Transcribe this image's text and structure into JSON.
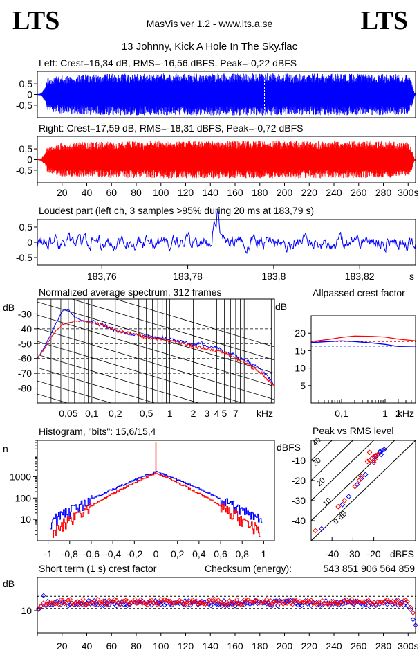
{
  "header": {
    "logo_left": "LTS",
    "logo_right": "LTS",
    "app_title": "MasVis ver 1.2 - www.lts.a.se",
    "track_title": "13 Johnny, Kick A Hole In The Sky.flac"
  },
  "colors": {
    "left": "#0000ff",
    "right": "#ff0000",
    "grid": "#000000"
  },
  "chart_data": [
    {
      "id": "left_waveform",
      "type": "area",
      "title": "Left: Crest=16,34 dB, RMS=-16,56 dBFS, Peak=-0,22 dBFS",
      "y_ticks": [
        "0,5",
        "0",
        "-0,5"
      ],
      "x_range": [
        0,
        306
      ],
      "y_range": [
        -1,
        1
      ],
      "series": [
        {
          "color": "#0000ff",
          "envelope": [
            [
              0,
              0.02
            ],
            [
              3,
              0.05
            ],
            [
              6,
              0.3
            ],
            [
              8,
              0.75
            ],
            [
              12,
              0.82
            ],
            [
              20,
              0.9
            ],
            [
              40,
              0.95
            ],
            [
              60,
              0.97
            ],
            [
              100,
              0.98
            ],
            [
              183.79,
              0.99
            ],
            [
              200,
              0.98
            ],
            [
              250,
              0.97
            ],
            [
              290,
              0.96
            ],
            [
              300,
              0.92
            ],
            [
              303,
              0.6
            ],
            [
              305,
              0.1
            ],
            [
              306,
              0.02
            ]
          ]
        }
      ]
    },
    {
      "id": "right_waveform",
      "type": "area",
      "title": "Right: Crest=17,59 dB, RMS=-18,31 dBFS, Peak=-0,72 dBFS",
      "y_ticks": [
        "0,5",
        "0",
        "-0,5"
      ],
      "x_ticks": [
        "20",
        "40",
        "60",
        "80",
        "100",
        "120",
        "140",
        "160",
        "180",
        "200",
        "220",
        "240",
        "260",
        "280",
        "300s"
      ],
      "x_range": [
        0,
        306
      ],
      "y_range": [
        -1,
        1
      ],
      "series": [
        {
          "color": "#ff0000",
          "envelope": [
            [
              0,
              0.02
            ],
            [
              3,
              0.05
            ],
            [
              6,
              0.25
            ],
            [
              8,
              0.6
            ],
            [
              12,
              0.7
            ],
            [
              20,
              0.8
            ],
            [
              60,
              0.85
            ],
            [
              100,
              0.88
            ],
            [
              200,
              0.88
            ],
            [
              280,
              0.86
            ],
            [
              300,
              0.82
            ],
            [
              303,
              0.5
            ],
            [
              305,
              0.08
            ],
            [
              306,
              0.02
            ]
          ]
        }
      ]
    },
    {
      "id": "loudest_part",
      "type": "line",
      "title": "Loudest part (left  ch, 3 samples >95% during 20 ms at 183,79 s)",
      "y_ticks": [
        "0,5",
        "0",
        "-0,5"
      ],
      "x_ticks": [
        "183,76",
        "183,78",
        "183,8",
        "183,82"
      ],
      "x_unit": "s",
      "x_range": [
        183.745,
        183.833
      ],
      "y_range": [
        -0.9,
        0.9
      ],
      "series": [
        {
          "color": "#0000ff"
        }
      ]
    },
    {
      "id": "avg_spectrum",
      "type": "line",
      "title": "Normalized average spectrum, 312 frames",
      "ylabel": "dB",
      "y_ticks": [
        "-30",
        "-40",
        "-50",
        "-60",
        "-70",
        "-80"
      ],
      "x_ticks": [
        "0,05",
        "0,1",
        "0,2",
        "0,5",
        "1",
        "2",
        "3",
        "4",
        "5",
        "7"
      ],
      "x_unit": "kHz",
      "x_range": [
        0.02,
        22
      ],
      "y_range": [
        -90,
        -20
      ],
      "series": [
        {
          "color": "#0000ff",
          "points": [
            [
              0.02,
              -60
            ],
            [
              0.025,
              -52
            ],
            [
              0.03,
              -43
            ],
            [
              0.035,
              -36
            ],
            [
              0.042,
              -28
            ],
            [
              0.05,
              -27
            ],
            [
              0.06,
              -32
            ],
            [
              0.08,
              -35
            ],
            [
              0.1,
              -35
            ],
            [
              0.15,
              -38
            ],
            [
              0.2,
              -41
            ],
            [
              0.3,
              -43
            ],
            [
              0.5,
              -45
            ],
            [
              0.8,
              -46
            ],
            [
              1,
              -47
            ],
            [
              1.5,
              -49
            ],
            [
              2,
              -51
            ],
            [
              2.5,
              -49
            ],
            [
              3,
              -52
            ],
            [
              4,
              -53
            ],
            [
              5,
              -55
            ],
            [
              7,
              -58
            ],
            [
              10,
              -62
            ],
            [
              15,
              -68
            ],
            [
              22,
              -78
            ]
          ]
        },
        {
          "color": "#ff0000",
          "points": [
            [
              0.02,
              -60
            ],
            [
              0.025,
              -53
            ],
            [
              0.03,
              -46
            ],
            [
              0.035,
              -41
            ],
            [
              0.042,
              -37
            ],
            [
              0.05,
              -36
            ],
            [
              0.06,
              -35
            ],
            [
              0.08,
              -35
            ],
            [
              0.1,
              -36
            ],
            [
              0.15,
              -38
            ],
            [
              0.2,
              -41
            ],
            [
              0.3,
              -43
            ],
            [
              0.5,
              -46
            ],
            [
              0.8,
              -47
            ],
            [
              1,
              -48
            ],
            [
              1.5,
              -50
            ],
            [
              2,
              -52
            ],
            [
              3,
              -53
            ],
            [
              4,
              -55
            ],
            [
              5,
              -56
            ],
            [
              7,
              -60
            ],
            [
              10,
              -64
            ],
            [
              15,
              -70
            ],
            [
              22,
              -79
            ]
          ]
        }
      ]
    },
    {
      "id": "allpassed_crest",
      "type": "line",
      "title": "Allpassed crest factor",
      "ylabel": "dB",
      "y_ticks": [
        "20",
        "15",
        "10",
        "5"
      ],
      "x_ticks": [
        "0,1",
        "1",
        "2"
      ],
      "x_unit": "kHz",
      "x_range": [
        0.02,
        5
      ],
      "y_range": [
        0,
        25
      ],
      "series": [
        {
          "color": "#ff0000",
          "points": [
            [
              0.02,
              17.6
            ],
            [
              0.05,
              18.2
            ],
            [
              0.1,
              18.8
            ],
            [
              0.2,
              19.2
            ],
            [
              0.5,
              19.1
            ],
            [
              1,
              18.9
            ],
            [
              2,
              18.3
            ],
            [
              5,
              17.8
            ]
          ]
        },
        {
          "color": "#0000ff",
          "points": [
            [
              0.02,
              17.3
            ],
            [
              0.05,
              17.6
            ],
            [
              0.1,
              17.8
            ],
            [
              0.2,
              17.6
            ],
            [
              0.5,
              17.2
            ],
            [
              1,
              16.8
            ],
            [
              2,
              16.2
            ],
            [
              5,
              16.3
            ]
          ]
        }
      ],
      "dashed_levels": [
        {
          "color": "#ff0000",
          "y": 17.6
        },
        {
          "color": "#0000ff",
          "y": 16.3
        }
      ]
    },
    {
      "id": "histogram",
      "type": "line",
      "title": "Histogram, \"bits\": 15,6/15,4",
      "ylabel": "n",
      "y_scale": "log",
      "y_ticks": [
        "1000",
        "100",
        "10"
      ],
      "x_ticks": [
        "-1",
        "-0,8",
        "-0,6",
        "-0,4",
        "-0,2",
        "0",
        "0,2",
        "0,4",
        "0,6",
        "0,8",
        "1"
      ],
      "x_range": [
        -1.1,
        1.1
      ],
      "y_range": [
        1,
        50000
      ],
      "series": [
        {
          "color": "#0000ff",
          "peak": 1700,
          "spread": 0.24,
          "edge": 0.98
        },
        {
          "color": "#ff0000",
          "peak": 1500,
          "spread": 0.2,
          "edge": 0.96,
          "spike": 40000
        }
      ]
    },
    {
      "id": "peak_vs_rms",
      "type": "scatter",
      "title": "Peak vs RMS level",
      "ylabel": "dBFS",
      "xlabel": "dBFS",
      "y_ticks": [
        "-10",
        "-20",
        "-30",
        "-40"
      ],
      "x_ticks": [
        "-40",
        "-30",
        "-20"
      ],
      "diag_labels": [
        "40",
        "30",
        "20",
        "10",
        "0 dB"
      ],
      "x_range": [
        -50,
        0
      ],
      "y_range": [
        -50,
        0
      ],
      "series": [
        {
          "color": "#0000ff",
          "points": [
            [
              -16,
              -5
            ],
            [
              -17,
              -6
            ],
            [
              -15,
              -4.5
            ],
            [
              -18,
              -7
            ],
            [
              -19,
              -8
            ],
            [
              -16.5,
              -7
            ],
            [
              -20,
              -10
            ],
            [
              -24,
              -17
            ],
            [
              -26,
              -19
            ],
            [
              -28,
              -22
            ],
            [
              -32,
              -28
            ],
            [
              -35,
              -32
            ],
            [
              -45,
              -44
            ],
            [
              -17,
              -5.5
            ]
          ]
        },
        {
          "color": "#ff0000",
          "points": [
            [
              -18,
              -7
            ],
            [
              -20,
              -8
            ],
            [
              -19,
              -7.5
            ],
            [
              -21,
              -9
            ],
            [
              -22,
              -10
            ],
            [
              -23,
              -10.5
            ],
            [
              -19.5,
              -9.5
            ],
            [
              -26,
              -18
            ],
            [
              -27,
              -20
            ],
            [
              -29,
              -23
            ],
            [
              -34,
              -30
            ],
            [
              -37,
              -33
            ],
            [
              -48,
              -45
            ],
            [
              -22,
              -6
            ],
            [
              -20,
              -11
            ]
          ]
        }
      ]
    },
    {
      "id": "short_term_crest",
      "type": "scatter",
      "title": "Short term (1 s) crest factor",
      "ylabel": "dB",
      "y_ticks": [
        "10"
      ],
      "x_ticks": [
        "20",
        "40",
        "60",
        "80",
        "100",
        "120",
        "140",
        "160",
        "180",
        "200",
        "220",
        "240",
        "260",
        "280",
        "300s"
      ],
      "x_range": [
        0,
        306
      ],
      "y_range": [
        0,
        25
      ],
      "dashed_levels": [
        {
          "y": 16.5
        },
        {
          "y": 11
        }
      ],
      "series": [
        {
          "color": "#0000ff",
          "mean": 13.4,
          "start": [
            [
              1,
              10.6
            ],
            [
              3,
              12.2
            ],
            [
              5,
              16.8
            ]
          ],
          "end": [
            [
              302,
              10.5
            ],
            [
              304,
              6
            ],
            [
              306,
              3.5
            ]
          ]
        },
        {
          "color": "#ff0000",
          "mean": 13.9,
          "start": [
            [
              1,
              11
            ],
            [
              3,
              12
            ],
            [
              5,
              13.5
            ]
          ],
          "end": [
            [
              302,
              11.5
            ],
            [
              304,
              9
            ]
          ]
        }
      ]
    }
  ],
  "checksum": {
    "label": "Checksum (energy):",
    "value": "543 851 906 564 859"
  }
}
